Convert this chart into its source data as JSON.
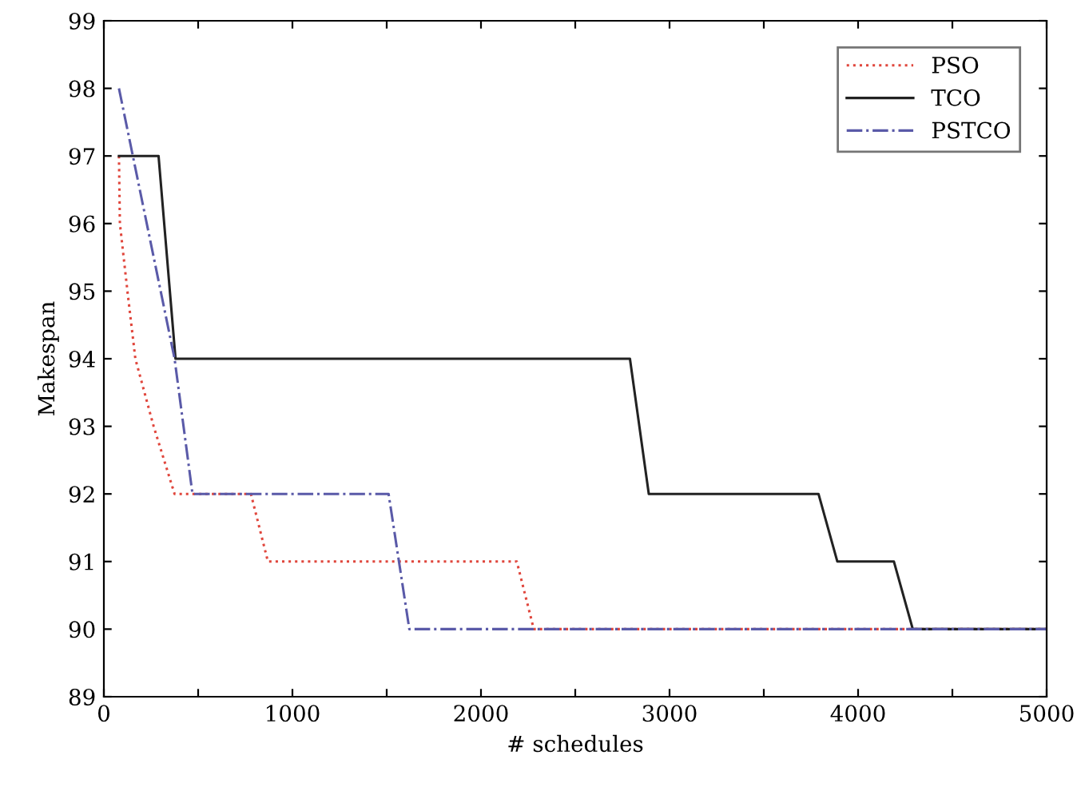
{
  "chart_data": {
    "type": "line",
    "xlabel": "# schedules",
    "ylabel": "Makespan",
    "xlim": [
      0,
      5000
    ],
    "ylim": [
      89,
      99
    ],
    "xticks": [
      0,
      {
        "value": 500,
        "label": null
      },
      1000,
      {
        "value": 1500,
        "label": null
      },
      2000,
      {
        "value": 2500,
        "label": null
      },
      3000,
      {
        "value": 3500,
        "label": null
      },
      4000,
      {
        "value": 4500,
        "label": null
      },
      5000
    ],
    "yticks": [
      89,
      90,
      91,
      92,
      93,
      94,
      95,
      96,
      97,
      98,
      99
    ],
    "grid": false,
    "legend": "top right",
    "marker": "none",
    "series": [
      {
        "name": "PSO",
        "color": "#e0463c",
        "line_style": "dotted",
        "x": [
          80,
          85,
          125,
          167,
          264,
          375,
          780,
          870,
          2190,
          2280,
          5000
        ],
        "values": [
          97,
          96,
          95,
          94,
          93,
          92,
          92,
          91,
          91,
          90,
          90
        ]
      },
      {
        "name": "TCO",
        "color": "#222222",
        "line_style": "solid",
        "x": [
          80,
          290,
          380,
          2790,
          2890,
          3790,
          3890,
          4190,
          4290,
          5000
        ],
        "values": [
          97,
          97,
          94,
          94,
          92,
          92,
          91,
          91,
          90,
          90
        ]
      },
      {
        "name": "PSTCO",
        "color": "#5a5aa8",
        "line_style": "dashdot",
        "x": [
          80,
          375,
          470,
          1510,
          1620,
          5000
        ],
        "values": [
          98,
          94,
          92,
          92,
          90,
          90
        ]
      }
    ]
  }
}
